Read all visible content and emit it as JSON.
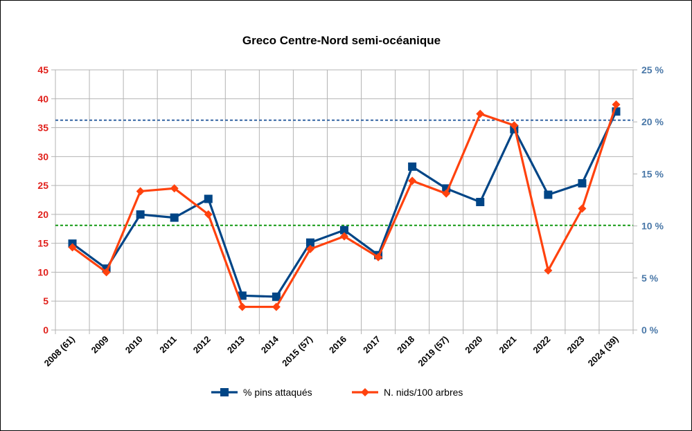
{
  "chart_data": {
    "type": "line",
    "title": "Greco Centre-Nord semi-océanique",
    "categories": [
      "2008 (61)",
      "2009",
      "2010",
      "2011",
      "2012",
      "2013",
      "2014",
      "2015 (57)",
      "2016",
      "2017",
      "2018",
      "2019 (57)",
      "2020",
      "2021",
      "2022",
      "2023",
      "2024 (39)"
    ],
    "y_left": {
      "min": 0,
      "max": 45,
      "step": 5,
      "color": "#e0201b"
    },
    "y_right": {
      "min": 0,
      "max": 25,
      "step": 5,
      "suffix": " %",
      "color": "#4a78a8"
    },
    "series": [
      {
        "name": "% pins attaqués",
        "axis": "right",
        "color": "#004586",
        "marker": "square",
        "values": [
          8.3,
          5.9,
          11.1,
          10.8,
          12.6,
          3.3,
          3.2,
          8.4,
          9.6,
          7.2,
          15.7,
          13.6,
          12.3,
          19.3,
          13.0,
          14.1,
          21.0
        ]
      },
      {
        "name": "N. nids/100 arbres",
        "axis": "left",
        "color": "#ff420e",
        "marker": "diamond",
        "values": [
          14.3,
          10.0,
          24.0,
          24.5,
          20.0,
          4.0,
          4.0,
          14.0,
          16.2,
          12.6,
          25.8,
          23.6,
          37.4,
          35.4,
          10.3,
          21.0,
          39.0
        ]
      }
    ],
    "reference_lines": [
      {
        "axis": "left",
        "value": 36.3,
        "color": "#3465a4"
      },
      {
        "axis": "left",
        "value": 18.1,
        "color": "#129912"
      }
    ],
    "grid": true,
    "legend": "bottom"
  }
}
